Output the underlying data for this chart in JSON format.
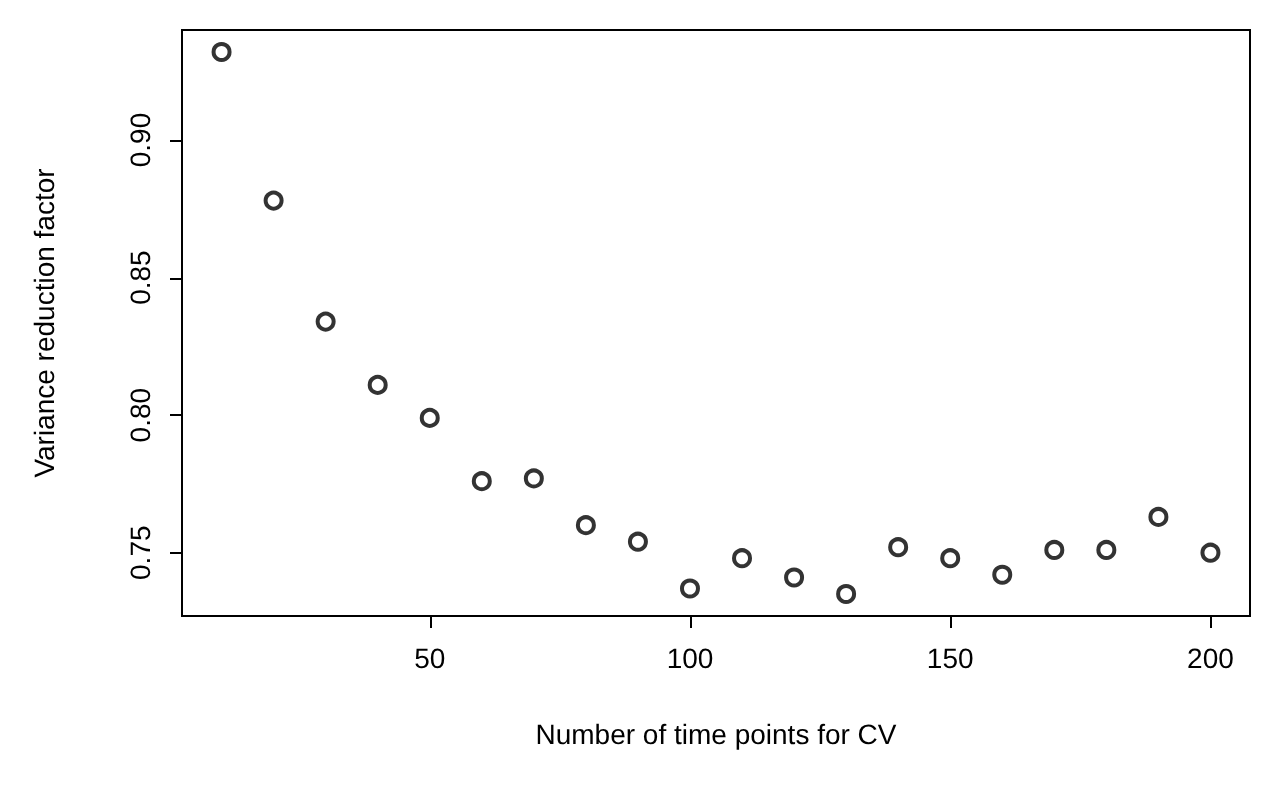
{
  "chart_data": {
    "type": "scatter",
    "xlabel": "Number of time points for CV",
    "ylabel": "Variance reduction factor",
    "x": [
      10,
      20,
      30,
      40,
      50,
      60,
      70,
      80,
      90,
      100,
      110,
      120,
      130,
      140,
      150,
      160,
      170,
      180,
      190,
      200
    ],
    "values": [
      0.932,
      0.878,
      0.834,
      0.811,
      0.799,
      0.776,
      0.777,
      0.76,
      0.754,
      0.737,
      0.748,
      0.741,
      0.735,
      0.752,
      0.748,
      0.742,
      0.751,
      0.751,
      0.763,
      0.75
    ],
    "color": "#000000",
    "marker": "circle",
    "xlim": [
      2.4,
      207.6
    ],
    "xticks": [
      50,
      100,
      150,
      200
    ],
    "ylim": [
      0.727,
      0.94
    ],
    "yticks": [
      0.75,
      {
        "value": 0.8,
        "label": "0.80"
      },
      0.85,
      {
        "value": 0.9,
        "label": "0.90"
      }
    ],
    "grid": false
  }
}
